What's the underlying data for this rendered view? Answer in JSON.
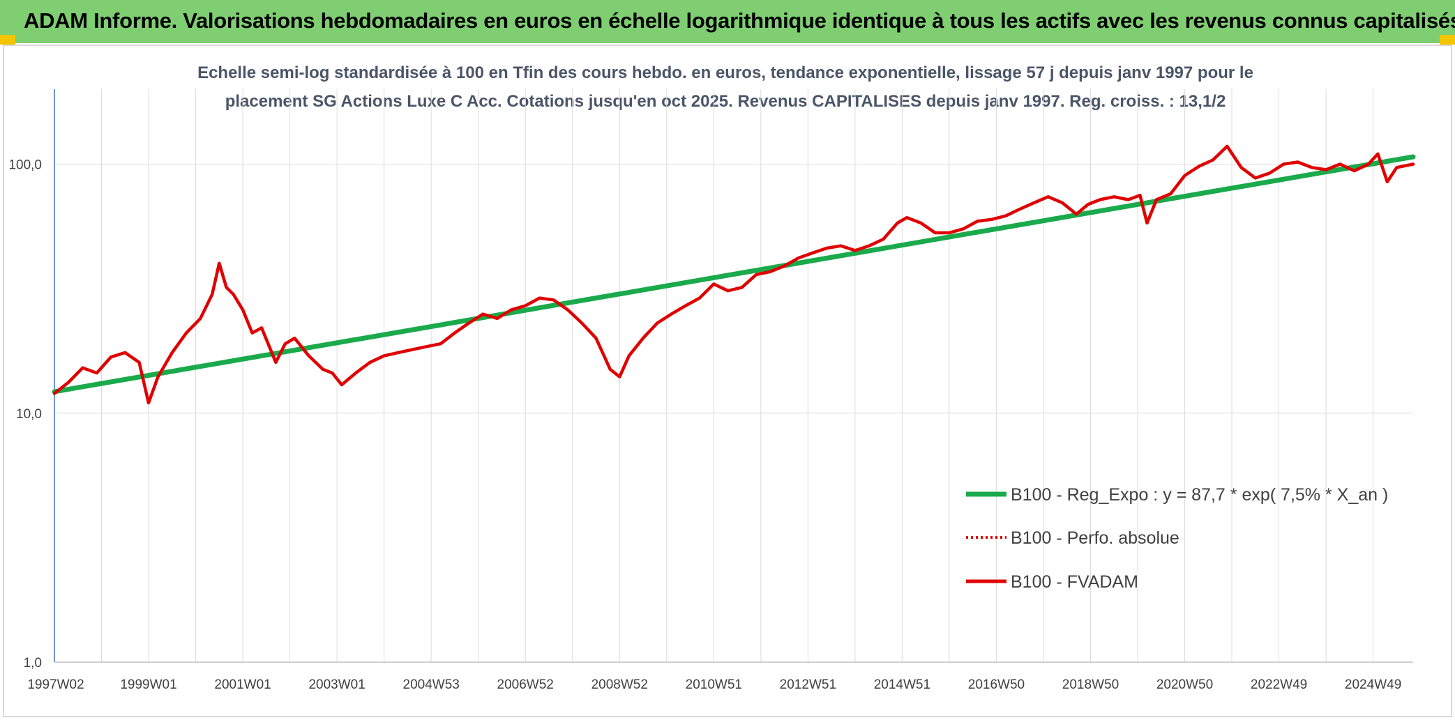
{
  "header": {
    "title": "ADAM Informe. Valorisations hebdomadaires en euros en échelle logarithmique identique à tous les actifs avec les revenus connus capitalisés"
  },
  "colors": {
    "header_bg": "#7fcf72",
    "corner_accent": "#f5c400",
    "regression_line": "#1aaa4b",
    "perf_line": "#e00000",
    "fvadam_line": "#e00000",
    "subtitle_text": "#4a5568"
  },
  "chart_data": {
    "type": "line",
    "subtitle_line1": "Echelle semi-log standardisée à 100 en Tfin des cours hebdo. en euros, tendance exponentielle, lissage 57 j depuis janv 1997 pour le",
    "subtitle_line2": "placement SG Actions Luxe C Acc. Cotations jusqu'en oct 2025. Revenus CAPITALISES depuis janv 1997. Reg. croiss. : 13,1/2",
    "y_scale": "log",
    "ylim": [
      1,
      200
    ],
    "y_ticks": [
      {
        "value": 1,
        "label": "1,0"
      },
      {
        "value": 10,
        "label": "10,0"
      },
      {
        "value": 100,
        "label": "100,0"
      }
    ],
    "xlim": [
      1997.0,
      2025.85
    ],
    "x_tick_labels": [
      {
        "x": 1997.0,
        "label": "1997W02"
      },
      {
        "x": 1999.0,
        "label": "1999W01"
      },
      {
        "x": 2001.0,
        "label": "2001W01"
      },
      {
        "x": 2003.0,
        "label": "2003W01"
      },
      {
        "x": 2005.0,
        "label": "2004W53"
      },
      {
        "x": 2007.0,
        "label": "2006W52"
      },
      {
        "x": 2009.0,
        "label": "2008W52"
      },
      {
        "x": 2011.0,
        "label": "2010W51"
      },
      {
        "x": 2013.0,
        "label": "2012W51"
      },
      {
        "x": 2015.0,
        "label": "2014W51"
      },
      {
        "x": 2017.0,
        "label": "2016W50"
      },
      {
        "x": 2019.0,
        "label": "2018W50"
      },
      {
        "x": 2021.0,
        "label": "2020W50"
      },
      {
        "x": 2023.0,
        "label": "2022W49"
      },
      {
        "x": 2025.0,
        "label": "2024W49"
      }
    ],
    "grid": true,
    "legend_position": "right",
    "series": [
      {
        "name": "B100 - Reg_Expo : y = 87,7 * exp( 7,5% *  X_an )",
        "style": "solid-thick",
        "color": "#1aaa4b",
        "x": [
          1997.0,
          2025.85
        ],
        "y": [
          12.2,
          107.0
        ]
      },
      {
        "name": "B100 - Perfo. absolue",
        "style": "dotted",
        "color": "#e00000",
        "x": [],
        "y": []
      },
      {
        "name": "B100 - FVADAM",
        "style": "solid",
        "color": "#e00000",
        "x": [
          1997.0,
          1997.3,
          1997.6,
          1997.9,
          1998.2,
          1998.5,
          1998.8,
          1999.0,
          1999.2,
          1999.5,
          1999.8,
          2000.1,
          2000.35,
          2000.5,
          2000.65,
          2000.8,
          2001.0,
          2001.2,
          2001.4,
          2001.7,
          2001.9,
          2002.1,
          2002.4,
          2002.7,
          2002.9,
          2003.1,
          2003.4,
          2003.7,
          2004.0,
          2004.3,
          2004.6,
          2004.9,
          2005.2,
          2005.5,
          2005.8,
          2006.1,
          2006.4,
          2006.7,
          2007.0,
          2007.3,
          2007.6,
          2007.9,
          2008.2,
          2008.5,
          2008.8,
          2009.0,
          2009.2,
          2009.5,
          2009.8,
          2010.1,
          2010.4,
          2010.7,
          2011.0,
          2011.3,
          2011.6,
          2011.9,
          2012.2,
          2012.5,
          2012.8,
          2013.1,
          2013.4,
          2013.7,
          2014.0,
          2014.3,
          2014.6,
          2014.9,
          2015.1,
          2015.4,
          2015.7,
          2016.0,
          2016.3,
          2016.6,
          2016.9,
          2017.2,
          2017.5,
          2017.8,
          2018.1,
          2018.4,
          2018.7,
          2018.95,
          2019.2,
          2019.5,
          2019.8,
          2020.05,
          2020.2,
          2020.4,
          2020.7,
          2021.0,
          2021.3,
          2021.6,
          2021.9,
          2022.2,
          2022.5,
          2022.8,
          2023.1,
          2023.4,
          2023.7,
          2024.0,
          2024.3,
          2024.6,
          2024.9,
          2025.1,
          2025.3,
          2025.5,
          2025.85
        ],
        "y": [
          12.0,
          13.3,
          15.2,
          14.5,
          16.8,
          17.5,
          16.0,
          11.0,
          14.0,
          17.5,
          21.0,
          24.0,
          30.0,
          40.0,
          32.0,
          30.0,
          26.0,
          21.0,
          22.0,
          16.0,
          19.0,
          20.0,
          17.0,
          15.0,
          14.5,
          13.0,
          14.5,
          16.0,
          17.0,
          17.5,
          18.0,
          18.5,
          19.0,
          21.0,
          23.0,
          25.0,
          24.0,
          26.0,
          27.0,
          29.0,
          28.5,
          26.0,
          23.0,
          20.0,
          15.0,
          14.0,
          17.0,
          20.0,
          23.0,
          25.0,
          27.0,
          29.0,
          33.0,
          31.0,
          32.0,
          36.0,
          37.0,
          39.0,
          42.0,
          44.0,
          46.0,
          47.0,
          45.0,
          47.0,
          50.0,
          58.0,
          61.0,
          58.0,
          53.0,
          53.0,
          55.0,
          59.0,
          60.0,
          62.0,
          66.0,
          70.0,
          74.0,
          70.0,
          63.0,
          69.0,
          72.0,
          74.0,
          72.0,
          75.0,
          58.0,
          72.0,
          76.0,
          90.0,
          98.0,
          104.0,
          118.0,
          97.0,
          88.0,
          92.0,
          100.0,
          102.0,
          97.0,
          95.0,
          100.0,
          94.0,
          100.0,
          110.0,
          85.0,
          97.0,
          100.0
        ]
      }
    ]
  }
}
